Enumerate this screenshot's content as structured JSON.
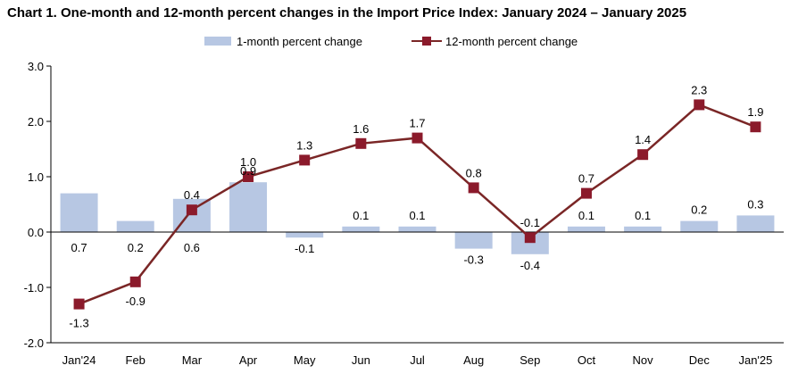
{
  "title": "Chart 1. One-month and 12-month percent changes in the Import Price Index: January 2024 – January 2025",
  "colors": {
    "bar": "#b7c7e3",
    "line": "#7a2626",
    "marker": "#8b1a2b",
    "axis": "#000000"
  },
  "chart_data": {
    "type": "bar",
    "categories": [
      "Jan'24",
      "Feb",
      "Mar",
      "Apr",
      "May",
      "Jun",
      "Jul",
      "Aug",
      "Sep",
      "Oct",
      "Nov",
      "Dec",
      "Jan'25"
    ],
    "series": [
      {
        "name": "1-month percent change",
        "type": "bar",
        "values": [
          0.7,
          0.2,
          0.6,
          0.9,
          -0.1,
          0.1,
          0.1,
          -0.3,
          -0.4,
          0.1,
          0.1,
          0.2,
          0.3
        ],
        "labels": [
          "0.7",
          "0.2",
          "0.6",
          "0.9",
          "-0.1",
          "0.1",
          "0.1",
          "-0.3",
          "-0.4",
          "0.1",
          "0.1",
          "0.2",
          "0.3"
        ]
      },
      {
        "name": "12-month percent change",
        "type": "line",
        "values": [
          -1.3,
          -0.9,
          0.4,
          1.0,
          1.3,
          1.6,
          1.7,
          0.8,
          -0.1,
          0.7,
          1.4,
          2.3,
          1.9
        ],
        "labels": [
          "-1.3",
          "-0.9",
          "0.4",
          "1.0",
          "1.3",
          "1.6",
          "1.7",
          "0.8",
          "-0.1",
          "0.7",
          "1.4",
          "2.3",
          "1.9"
        ]
      }
    ],
    "ylim": [
      -2.0,
      3.0
    ],
    "yticks": [
      "3.0",
      "2.0",
      "1.0",
      "0.0",
      "-1.0",
      "-2.0"
    ],
    "xlabel": "",
    "ylabel": "",
    "legend": "top",
    "grid": false
  }
}
